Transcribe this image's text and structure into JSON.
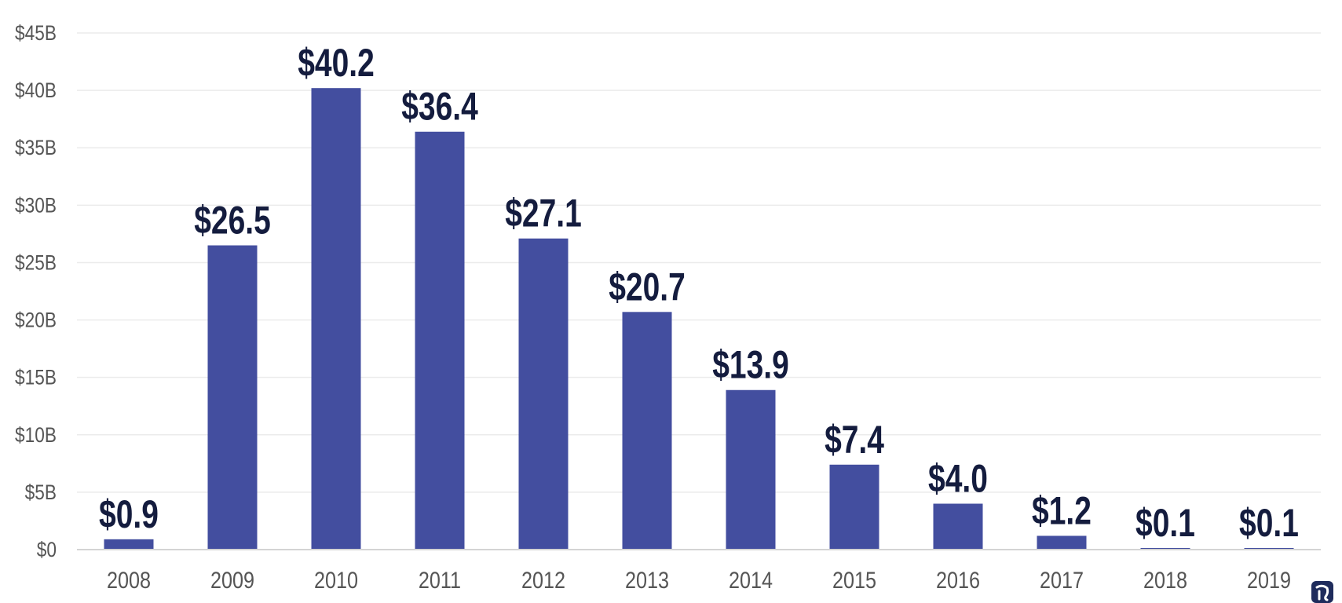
{
  "chart_data": {
    "type": "bar",
    "categories": [
      "2008",
      "2009",
      "2010",
      "2011",
      "2012",
      "2013",
      "2014",
      "2015",
      "2016",
      "2017",
      "2018",
      "2019"
    ],
    "values": [
      0.9,
      26.5,
      40.2,
      36.4,
      27.1,
      20.7,
      13.9,
      7.4,
      4.0,
      1.2,
      0.1,
      0.1
    ],
    "data_labels": [
      "$0.9",
      "$26.5",
      "$40.2",
      "$36.4",
      "$27.1",
      "$20.7",
      "$13.9",
      "$7.4",
      "$4.0",
      "$1.2",
      "$0.1",
      "$0.1"
    ],
    "y_ticks": [
      {
        "value": 0,
        "label": "$0"
      },
      {
        "value": 5,
        "label": "$5B"
      },
      {
        "value": 10,
        "label": "$10B"
      },
      {
        "value": 15,
        "label": "$15B"
      },
      {
        "value": 20,
        "label": "$20B"
      },
      {
        "value": 25,
        "label": "$25B"
      },
      {
        "value": 30,
        "label": "$30B"
      },
      {
        "value": 35,
        "label": "$35B"
      },
      {
        "value": 40,
        "label": "$40B"
      },
      {
        "value": 45,
        "label": "$45B"
      }
    ],
    "ylim": [
      0,
      45
    ],
    "title": "",
    "xlabel": "",
    "ylabel": "",
    "grid": true,
    "legend": "none",
    "colors": {
      "bar": "#434e9f",
      "data_label": "#141c3e",
      "tick_label": "#555555",
      "logo": "#1f2c5c"
    }
  },
  "logo": {
    "icon": "elephant-logo-icon"
  }
}
